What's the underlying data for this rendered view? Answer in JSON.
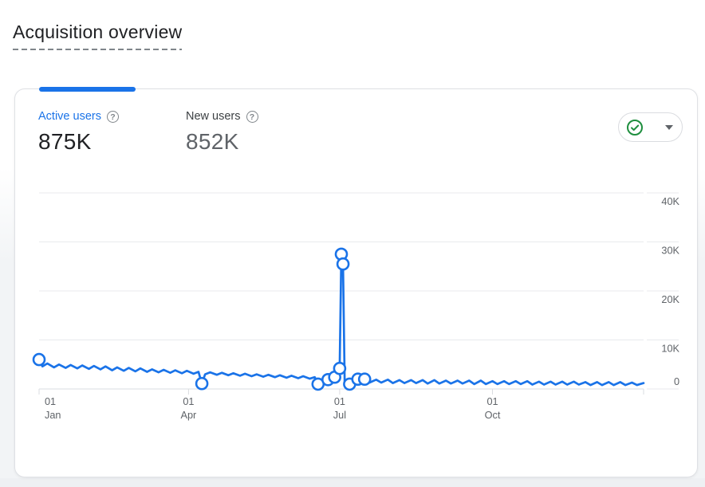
{
  "page": {
    "title": "Acquisition overview"
  },
  "card": {
    "metrics": [
      {
        "label": "Active users",
        "value": "875K",
        "help_icon": "question-mark-circle-icon",
        "accent": "#1a73e8",
        "active": true
      },
      {
        "label": "New users",
        "value": "852K",
        "help_icon": "question-mark-circle-icon",
        "active": false
      }
    ],
    "help_glyph": "?",
    "status_dropdown": {
      "icon": "check-circle-icon",
      "icon_color": "#1e8e3e",
      "caret_icon": "chevron-down-icon"
    }
  },
  "chart_data": {
    "type": "line",
    "title": "Active users over time (daily)",
    "unit": "users, thousands (K)",
    "line_color": "#1a73e8",
    "grid": true,
    "legend_position": "none",
    "y_axis": {
      "max": 40,
      "ticks": [
        {
          "v": 0,
          "label": "0"
        },
        {
          "v": 10,
          "label": "10K"
        },
        {
          "v": 20,
          "label": "20K"
        },
        {
          "v": 30,
          "label": "30K"
        },
        {
          "v": 40,
          "label": "40K"
        }
      ]
    },
    "x_axis": {
      "range_days": 364,
      "ticks": [
        {
          "day": 0,
          "line1": "01",
          "line2": "Jan"
        },
        {
          "day": 90,
          "line1": "01",
          "line2": "Apr"
        },
        {
          "day": 181,
          "line1": "01",
          "line2": "Jul"
        },
        {
          "day": 273,
          "line1": "01",
          "line2": "Oct"
        }
      ]
    },
    "series": [
      {
        "name": "Active users",
        "points": [
          [
            0,
            6.0
          ],
          [
            2,
            4.6
          ],
          [
            5,
            5.2
          ],
          [
            9,
            4.4
          ],
          [
            12,
            5.0
          ],
          [
            16,
            4.3
          ],
          [
            19,
            4.9
          ],
          [
            23,
            4.2
          ],
          [
            26,
            4.8
          ],
          [
            30,
            4.1
          ],
          [
            33,
            4.7
          ],
          [
            37,
            4.0
          ],
          [
            40,
            4.6
          ],
          [
            44,
            3.8
          ],
          [
            47,
            4.4
          ],
          [
            51,
            3.7
          ],
          [
            54,
            4.3
          ],
          [
            58,
            3.6
          ],
          [
            61,
            4.2
          ],
          [
            65,
            3.5
          ],
          [
            68,
            4.0
          ],
          [
            72,
            3.4
          ],
          [
            75,
            3.9
          ],
          [
            79,
            3.3
          ],
          [
            82,
            3.8
          ],
          [
            86,
            3.2
          ],
          [
            89,
            3.7
          ],
          [
            93,
            3.1
          ],
          [
            96,
            3.5
          ],
          [
            98,
            1.1
          ],
          [
            100,
            3.0
          ],
          [
            103,
            3.4
          ],
          [
            107,
            2.9
          ],
          [
            110,
            3.3
          ],
          [
            114,
            2.8
          ],
          [
            117,
            3.2
          ],
          [
            121,
            2.7
          ],
          [
            124,
            3.1
          ],
          [
            128,
            2.6
          ],
          [
            131,
            3.0
          ],
          [
            135,
            2.5
          ],
          [
            138,
            2.9
          ],
          [
            142,
            2.4
          ],
          [
            145,
            2.8
          ],
          [
            149,
            2.3
          ],
          [
            152,
            2.7
          ],
          [
            156,
            2.2
          ],
          [
            159,
            2.6
          ],
          [
            163,
            2.1
          ],
          [
            166,
            2.4
          ],
          [
            168,
            1.0
          ],
          [
            171,
            1.8
          ],
          [
            174,
            1.9
          ],
          [
            177,
            2.2
          ],
          [
            178,
            2.4
          ],
          [
            180,
            1.5
          ],
          [
            181,
            4.2
          ],
          [
            182,
            27.5
          ],
          [
            183,
            25.5
          ],
          [
            184,
            1.2
          ],
          [
            187,
            1.0
          ],
          [
            190,
            1.7
          ],
          [
            192,
            2.0
          ],
          [
            194,
            1.4
          ],
          [
            196,
            2.0
          ],
          [
            199,
            1.3
          ],
          [
            203,
            1.9
          ],
          [
            206,
            1.3
          ],
          [
            210,
            1.9
          ],
          [
            213,
            1.2
          ],
          [
            217,
            1.8
          ],
          [
            220,
            1.2
          ],
          [
            224,
            1.8
          ],
          [
            227,
            1.2
          ],
          [
            231,
            1.8
          ],
          [
            234,
            1.1
          ],
          [
            238,
            1.8
          ],
          [
            241,
            1.1
          ],
          [
            245,
            1.7
          ],
          [
            248,
            1.1
          ],
          [
            252,
            1.7
          ],
          [
            255,
            1.1
          ],
          [
            259,
            1.7
          ],
          [
            262,
            1.0
          ],
          [
            266,
            1.7
          ],
          [
            269,
            1.0
          ],
          [
            273,
            1.6
          ],
          [
            276,
            1.0
          ],
          [
            280,
            1.6
          ],
          [
            283,
            1.0
          ],
          [
            287,
            1.6
          ],
          [
            290,
            1.0
          ],
          [
            294,
            1.6
          ],
          [
            297,
            0.9
          ],
          [
            301,
            1.5
          ],
          [
            304,
            0.9
          ],
          [
            308,
            1.5
          ],
          [
            311,
            0.9
          ],
          [
            315,
            1.5
          ],
          [
            318,
            0.9
          ],
          [
            322,
            1.5
          ],
          [
            325,
            0.9
          ],
          [
            329,
            1.4
          ],
          [
            332,
            0.8
          ],
          [
            336,
            1.4
          ],
          [
            339,
            0.8
          ],
          [
            343,
            1.4
          ],
          [
            346,
            0.8
          ],
          [
            350,
            1.4
          ],
          [
            353,
            0.8
          ],
          [
            357,
            1.3
          ],
          [
            360,
            0.8
          ],
          [
            364,
            1.2
          ]
        ]
      }
    ],
    "anomaly_markers": [
      [
        0,
        6.0
      ],
      [
        98,
        1.1
      ],
      [
        168,
        1.0
      ],
      [
        174,
        1.9
      ],
      [
        178,
        2.4
      ],
      [
        181,
        4.2
      ],
      [
        182,
        27.5
      ],
      [
        183,
        25.5
      ],
      [
        187,
        1.0
      ],
      [
        192,
        2.0
      ],
      [
        196,
        2.0
      ]
    ]
  }
}
